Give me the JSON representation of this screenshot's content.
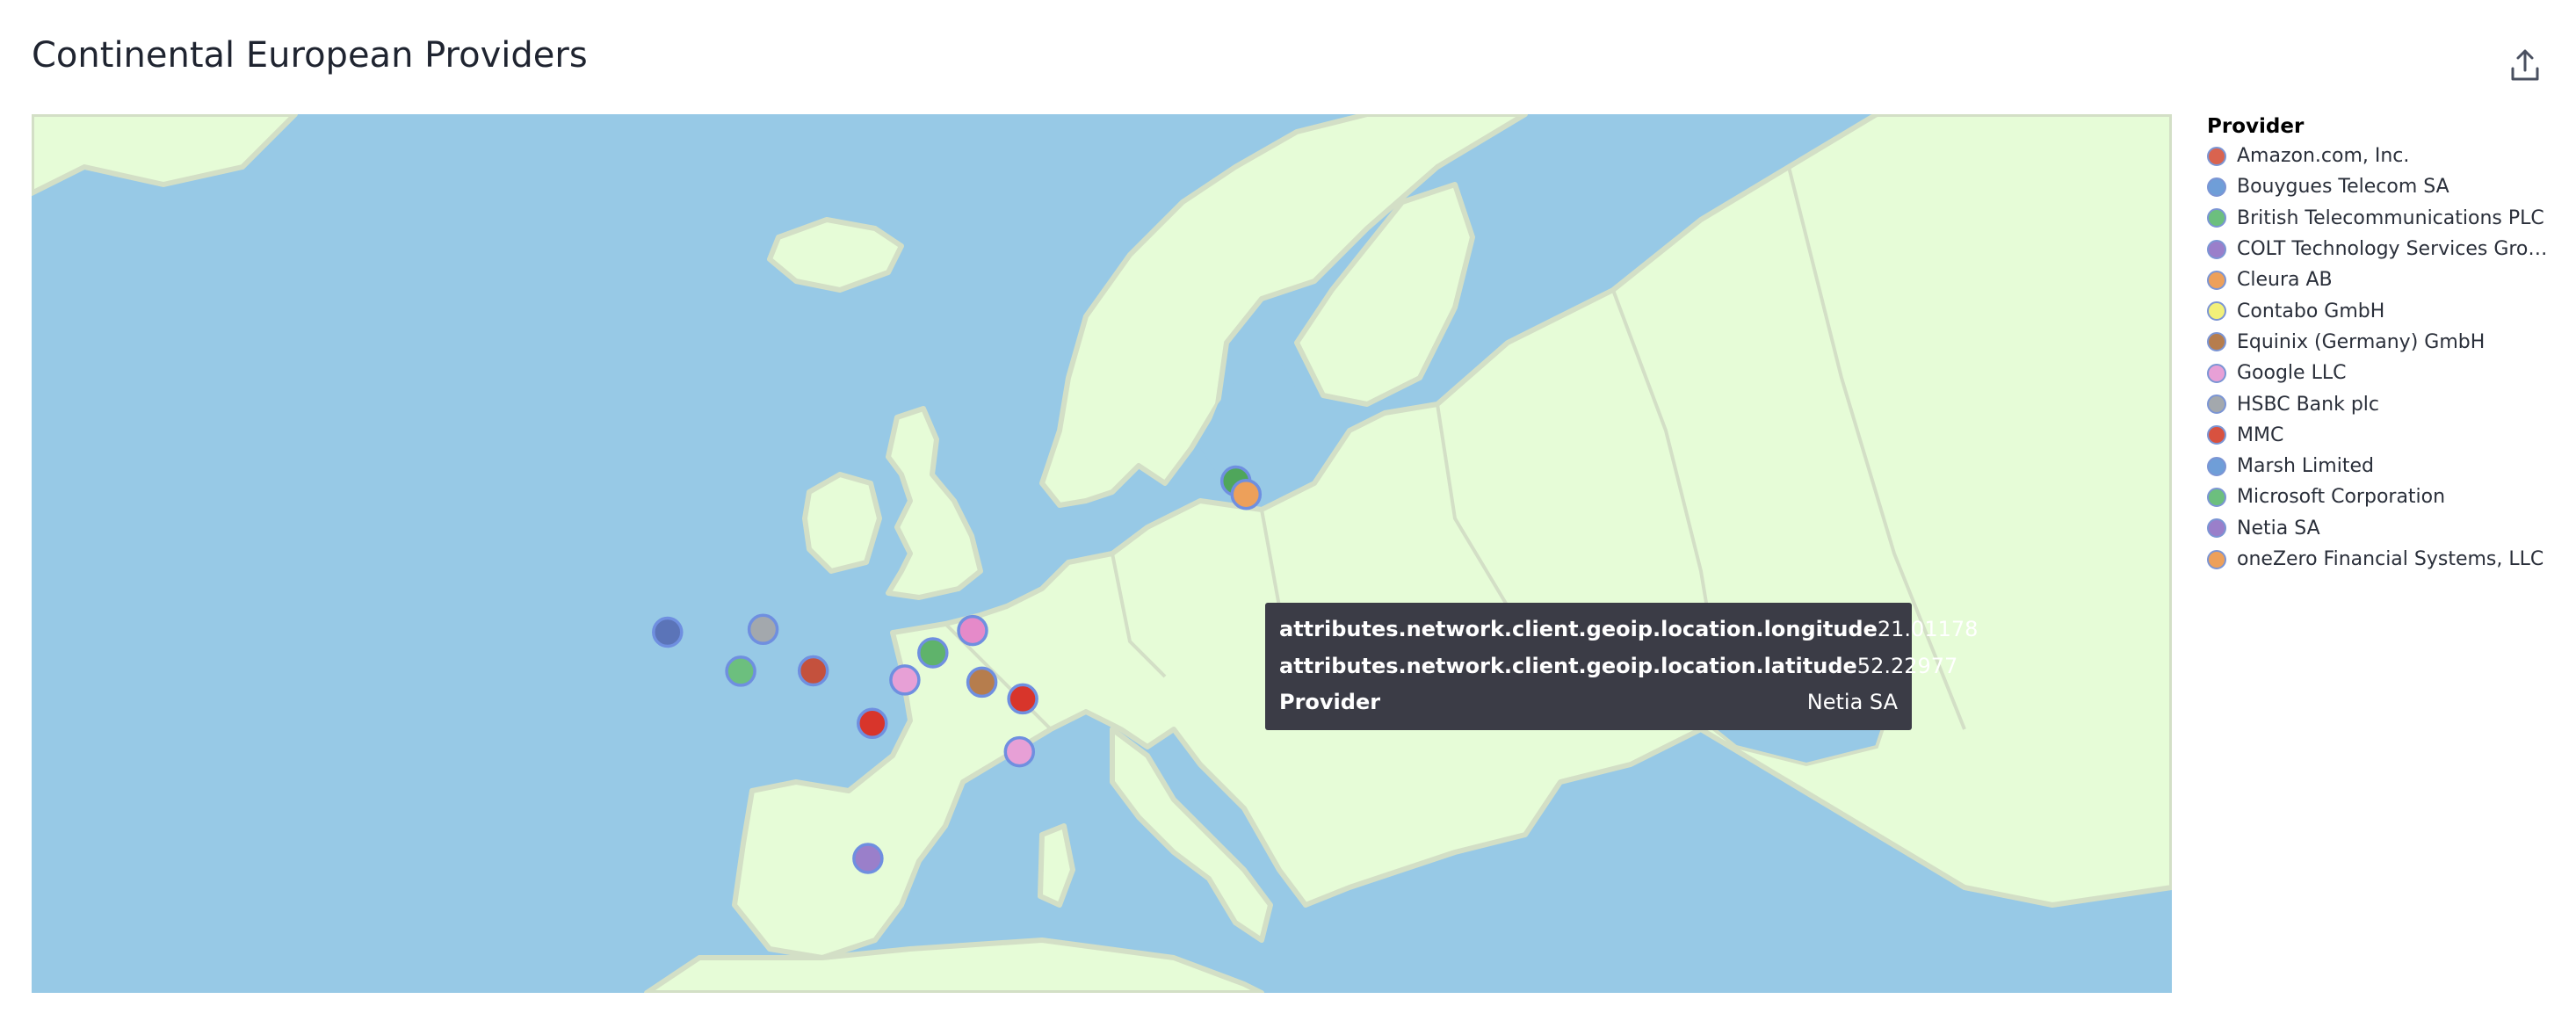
{
  "panel": {
    "title": "Continental European Providers"
  },
  "legend": {
    "title": "Provider",
    "items": [
      {
        "label": "Amazon.com, Inc.",
        "color": "#d9634f"
      },
      {
        "label": "Bouygues Telecom SA",
        "color": "#6f9ed8"
      },
      {
        "label": "British Telecommunications PLC",
        "color": "#6cbf7e"
      },
      {
        "label": "COLT Technology Services Grou...",
        "color": "#9a7fca"
      },
      {
        "label": "Cleura AB",
        "color": "#eda05a"
      },
      {
        "label": "Contabo GmbH",
        "color": "#f2f07a"
      },
      {
        "label": "Equinix (Germany) GmbH",
        "color": "#b67d4d"
      },
      {
        "label": "Google LLC",
        "color": "#e7a0d6"
      },
      {
        "label": "HSBC Bank plc",
        "color": "#a3a8ad"
      },
      {
        "label": "MMC",
        "color": "#d8513f"
      },
      {
        "label": "Marsh Limited",
        "color": "#6f9ed8"
      },
      {
        "label": "Microsoft Corporation",
        "color": "#6cbf7e"
      },
      {
        "label": "Netia SA",
        "color": "#9a7fca"
      },
      {
        "label": "oneZero Financial Systems, LLC",
        "color": "#eda05a"
      }
    ]
  },
  "tooltip": {
    "rows": [
      {
        "key": "attributes.network.client.geoip.location.longitude",
        "value": "21.01178"
      },
      {
        "key": "attributes.network.client.geoip.location.latitude",
        "value": "52.22977"
      },
      {
        "key": "Provider",
        "value": "Netia SA"
      }
    ]
  },
  "map": {
    "colors": {
      "sea": "#97c9e6",
      "land": "#e6fcd7",
      "border": "#d3dfc6",
      "marker_stroke": "#6f8fe0"
    },
    "points": [
      {
        "provider": "Marsh Limited",
        "lon": -6.26,
        "lat": 53.35,
        "color": "#5b74b8"
      },
      {
        "provider": "HSBC Bank plc",
        "lon": -2.24,
        "lat": 53.48,
        "color": "#a3a8ad"
      },
      {
        "provider": "Microsoft Corporation",
        "lon": -3.18,
        "lat": 51.48,
        "color": "#6cbf7e"
      },
      {
        "provider": "Amazon.com, Inc.",
        "lon": -0.13,
        "lat": 51.5,
        "color": "#c4513d"
      },
      {
        "provider": "British Telecommunications PLC",
        "lon": 4.9,
        "lat": 52.37,
        "color": "#5fb36b"
      },
      {
        "provider": "Google LLC",
        "lon": 6.57,
        "lat": 53.43,
        "color": "#e58ac9"
      },
      {
        "provider": "Google LLC",
        "lon": 3.72,
        "lat": 51.05,
        "color": "#e7a0d6"
      },
      {
        "provider": "Equinix (Germany) GmbH",
        "lon": 6.96,
        "lat": 50.94,
        "color": "#b67d4d"
      },
      {
        "provider": "MMC",
        "lon": 8.68,
        "lat": 50.11,
        "color": "#d8352b"
      },
      {
        "provider": "MMC",
        "lon": 2.35,
        "lat": 48.86,
        "color": "#d8352b"
      },
      {
        "provider": "Google LLC",
        "lon": 8.54,
        "lat": 47.37,
        "color": "#e7a0d6"
      },
      {
        "provider": "COLT Technology Services Grou...",
        "lon": 2.17,
        "lat": 41.39,
        "color": "#9a7fca"
      },
      {
        "provider": "British Telecommunications PLC",
        "lon": 17.64,
        "lat": 59.86,
        "color": "#4fa65b"
      },
      {
        "provider": "Cleura AB",
        "lon": 18.07,
        "lat": 59.33,
        "color": "#eda05a"
      },
      {
        "provider": "Netia SA",
        "lon": 21.01178,
        "lat": 52.22977,
        "color": "#9a7fca"
      }
    ]
  }
}
